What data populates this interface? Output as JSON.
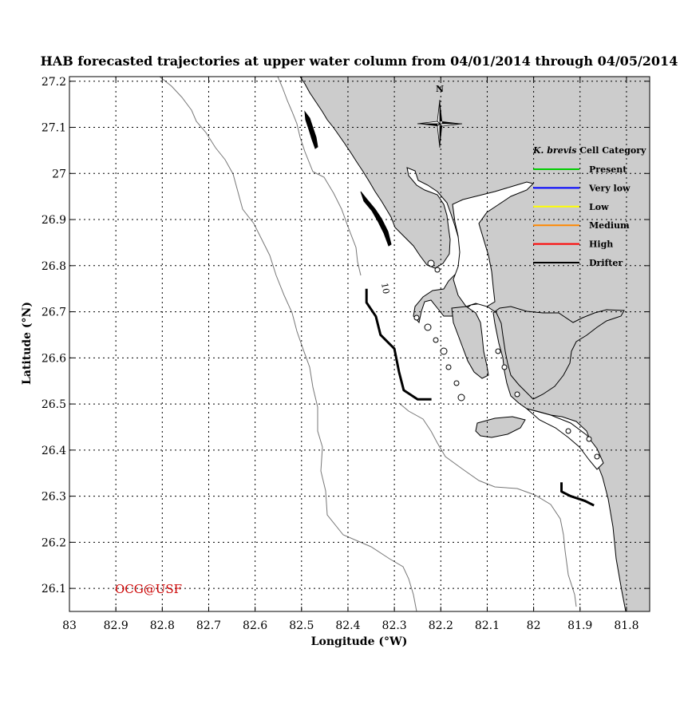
{
  "title": "HAB forecasted trajectories at upper water column from 04/01/2014 through 04/05/2014",
  "x_axis": {
    "label": "Longitude (°W)",
    "range": [
      83.0,
      81.75
    ],
    "ticks": [
      "83",
      "82.9",
      "82.8",
      "82.7",
      "82.6",
      "82.5",
      "82.4",
      "82.3",
      "82.2",
      "82.1",
      "82",
      "81.9",
      "81.8"
    ],
    "tick_values": [
      83.0,
      82.9,
      82.8,
      82.7,
      82.6,
      82.5,
      82.4,
      82.3,
      82.2,
      82.1,
      82.0,
      81.9,
      81.8
    ]
  },
  "y_axis": {
    "label": "Latitude (°N)",
    "range": [
      26.05,
      27.21
    ],
    "ticks": [
      "26.1",
      "26.2",
      "26.3",
      "26.4",
      "26.5",
      "26.6",
      "26.7",
      "26.8",
      "26.9",
      "27",
      "27.1",
      "27.2"
    ],
    "tick_values": [
      26.1,
      26.2,
      26.3,
      26.4,
      26.5,
      26.6,
      26.7,
      26.8,
      26.9,
      27.0,
      27.1,
      27.2
    ]
  },
  "grid": true,
  "compass": {
    "label": "N"
  },
  "legend": {
    "placement": "top-right",
    "title_italic": "K. brevis",
    "title_rest": " Cell Category",
    "items": [
      {
        "label": "Present",
        "color": "#00cc00"
      },
      {
        "label": "Very low",
        "color": "#0000ff"
      },
      {
        "label": "Low",
        "color": "#ffff00"
      },
      {
        "label": "Medium",
        "color": "#ff8800"
      },
      {
        "label": "High",
        "color": "#ff0000"
      },
      {
        "label": "Drifter",
        "color": "#000000"
      }
    ]
  },
  "contour_label": "10",
  "credit": "OCG@USF",
  "colors": {
    "land": "#cccccc",
    "water": "#ffffff",
    "grid": "#000000",
    "credit": "#cc0000"
  },
  "chart_data": {
    "type": "map",
    "bathymetry_contour_label": "10",
    "drifter_tracks": [
      {
        "category": "Drifter",
        "points": [
          [
            82.36,
            26.75
          ],
          [
            82.36,
            26.72
          ],
          [
            82.34,
            26.69
          ],
          [
            82.33,
            26.65
          ],
          [
            82.3,
            26.62
          ],
          [
            82.29,
            26.57
          ],
          [
            82.28,
            26.53
          ],
          [
            82.25,
            26.51
          ],
          [
            82.22,
            26.51
          ]
        ]
      },
      {
        "category": "Drifter",
        "points": [
          [
            81.94,
            26.33
          ],
          [
            81.94,
            26.31
          ],
          [
            81.92,
            26.3
          ],
          [
            81.89,
            26.29
          ],
          [
            81.87,
            26.28
          ]
        ]
      }
    ]
  }
}
